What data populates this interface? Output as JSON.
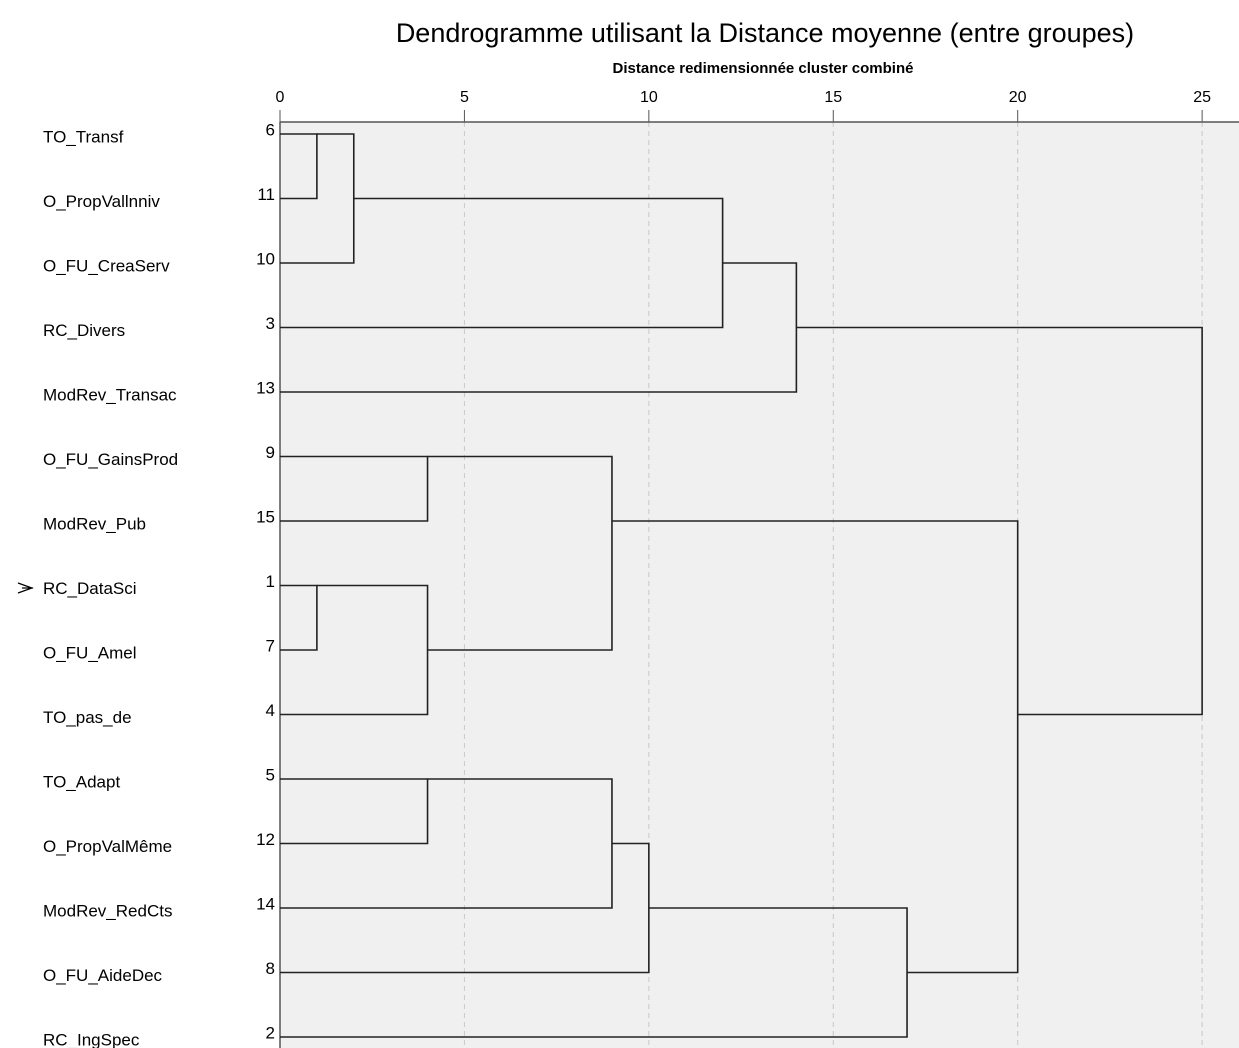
{
  "chart_data": {
    "type": "dendrogram",
    "title": "Dendrogramme utilisant la Distance moyenne (entre groupes)",
    "xlabel": "Distance redimensionnée cluster combiné",
    "xlim": [
      0,
      26
    ],
    "xticks": [
      0,
      5,
      10,
      15,
      20,
      25
    ],
    "grid": true,
    "leaves": [
      {
        "label": "TO_Transf",
        "case": 6
      },
      {
        "label": "O_PropVallnniv",
        "case": 11
      },
      {
        "label": "O_FU_CreaServ",
        "case": 10
      },
      {
        "label": "RC_Divers",
        "case": 3
      },
      {
        "label": "ModRev_Transac",
        "case": 13
      },
      {
        "label": "O_FU_GainsProd",
        "case": 9
      },
      {
        "label": "ModRev_Pub",
        "case": 15
      },
      {
        "label": "RC_DataSci",
        "case": 1
      },
      {
        "label": "O_FU_Amel",
        "case": 7
      },
      {
        "label": "TO_pas_de",
        "case": 4
      },
      {
        "label": "TO_Adapt",
        "case": 5
      },
      {
        "label": "O_PropValMême",
        "case": 12
      },
      {
        "label": "ModRev_RedCts",
        "case": 14
      },
      {
        "label": "O_FU_AideDec",
        "case": 8
      },
      {
        "label": "RC_IngSpec",
        "case": 2
      }
    ],
    "merges": [
      {
        "nodes": [
          0,
          1
        ],
        "distance": 1
      },
      {
        "nodes": [
          15,
          2
        ],
        "distance": 2
      },
      {
        "nodes": [
          16,
          3
        ],
        "distance": 12
      },
      {
        "nodes": [
          17,
          4
        ],
        "distance": 14
      },
      {
        "nodes": [
          5,
          6
        ],
        "distance": 4
      },
      {
        "nodes": [
          7,
          8
        ],
        "distance": 1
      },
      {
        "nodes": [
          20,
          9
        ],
        "distance": 4
      },
      {
        "nodes": [
          19,
          21
        ],
        "distance": 9
      },
      {
        "nodes": [
          10,
          11
        ],
        "distance": 4
      },
      {
        "nodes": [
          23,
          12
        ],
        "distance": 9
      },
      {
        "nodes": [
          24,
          13
        ],
        "distance": 10
      },
      {
        "nodes": [
          25,
          14
        ],
        "distance": 17
      },
      {
        "nodes": [
          22,
          26
        ],
        "distance": 20
      },
      {
        "nodes": [
          18,
          27
        ],
        "distance": 25
      }
    ]
  }
}
